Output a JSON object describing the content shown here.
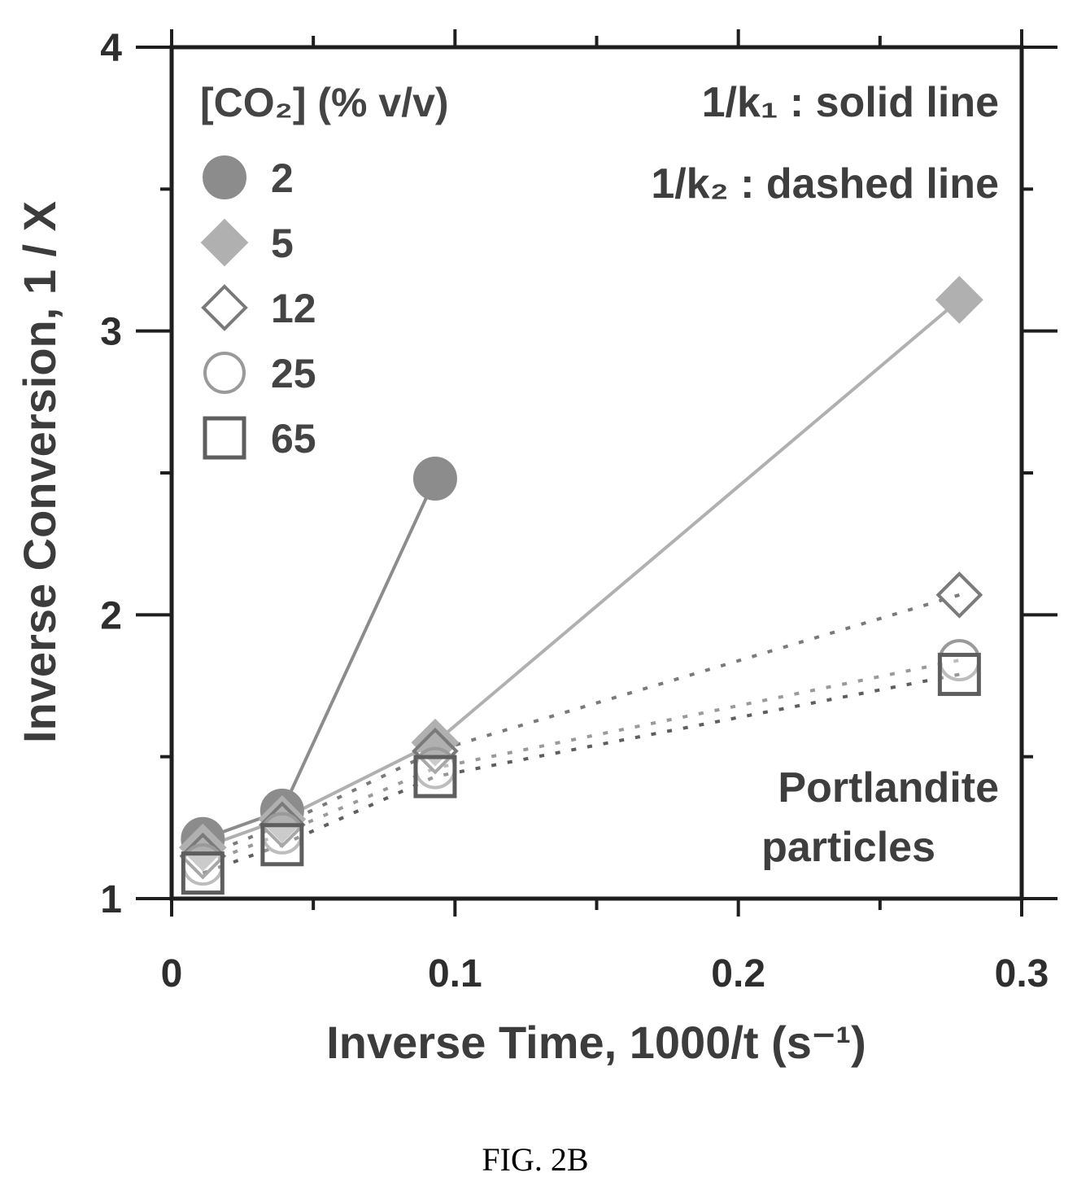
{
  "chart_data": {
    "type": "scatter",
    "xlabel": "Inverse Time, 1000/t (s⁻¹)",
    "ylabel": "Inverse Conversion, 1 / X",
    "xlim": [
      0,
      0.3
    ],
    "ylim": [
      1,
      4
    ],
    "x_ticks": [
      {
        "value": 0,
        "label": "0"
      },
      {
        "value": 0.1,
        "label": "0.1"
      },
      {
        "value": 0.2,
        "label": "0.2"
      },
      {
        "value": 0.3,
        "label": "0.3"
      }
    ],
    "y_ticks": [
      {
        "value": 1,
        "label": "1"
      },
      {
        "value": 2,
        "label": "2"
      },
      {
        "value": 3,
        "label": "3"
      },
      {
        "value": 4,
        "label": "4"
      }
    ],
    "x_minor_ticks": [
      0.05,
      0.15,
      0.25
    ],
    "y_minor_ticks": [
      1.5,
      2.5,
      3.5
    ],
    "grid": false,
    "legend": {
      "title": "[CO₂] (% v/v)",
      "placement": "top-left"
    },
    "annotations": {
      "solid_line": "1/k₁ : solid line",
      "dashed_line": "1/k₂ : dashed line",
      "material_line1": "Portlandite",
      "material_line2": "particles"
    },
    "series": [
      {
        "name": "2",
        "marker": "filled-circle",
        "color": "#8c8c8c",
        "line": "solid",
        "x": [
          0.011,
          0.039,
          0.093
        ],
        "y": [
          1.21,
          1.31,
          2.48
        ]
      },
      {
        "name": "5",
        "marker": "filled-diamond",
        "color": "#b0b0b0",
        "line": "solid",
        "x": [
          0.011,
          0.039,
          0.093,
          0.278
        ],
        "y": [
          1.18,
          1.28,
          1.55,
          3.11
        ]
      },
      {
        "name": "12",
        "marker": "open-diamond",
        "color": "#7a7a7a",
        "line": "dashed",
        "x": [
          0.011,
          0.039,
          0.093,
          0.278
        ],
        "y": [
          1.15,
          1.26,
          1.52,
          2.07
        ]
      },
      {
        "name": "25",
        "marker": "open-circle",
        "color": "#9a9a9a",
        "line": "dashed",
        "x": [
          0.011,
          0.039,
          0.093,
          0.278
        ],
        "y": [
          1.12,
          1.23,
          1.46,
          1.84
        ]
      },
      {
        "name": "65",
        "marker": "open-square",
        "color": "#5e5e5e",
        "line": "dashed",
        "x": [
          0.011,
          0.039,
          0.093,
          0.278
        ],
        "y": [
          1.09,
          1.19,
          1.43,
          1.79
        ]
      }
    ]
  },
  "caption": "FIG. 2B"
}
